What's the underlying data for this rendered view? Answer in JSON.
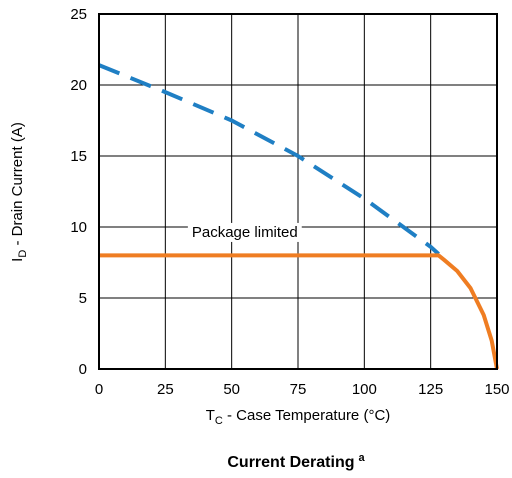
{
  "chart_data": {
    "type": "line",
    "title": "Current Derating",
    "title_superscript": "a",
    "xlabel": {
      "main": "T",
      "sub": "C",
      "rest": " - Case Temperature (°C)"
    },
    "ylabel": {
      "main": "I",
      "sub": "D",
      "rest": " - Drain Current (A)"
    },
    "xlim": [
      0,
      150
    ],
    "ylim": [
      0,
      25
    ],
    "xticks": [
      0,
      25,
      50,
      75,
      100,
      125,
      150
    ],
    "yticks": [
      0,
      5,
      10,
      15,
      20,
      25
    ],
    "grid": true,
    "annotation": {
      "text": "Package limited",
      "x": 35,
      "y": 9.3
    },
    "series": [
      {
        "style": "dashed",
        "color": "#1f7fc4",
        "x": [
          0,
          25,
          50,
          75,
          100,
          125,
          128
        ],
        "y": [
          21.4,
          19.5,
          17.5,
          15.0,
          12.0,
          8.6,
          8.1
        ]
      },
      {
        "style": "solid",
        "color": "#ef7d22",
        "x": [
          0,
          128,
          130,
          135,
          140,
          145,
          148,
          150
        ],
        "y": [
          8.0,
          8.0,
          7.7,
          6.9,
          5.7,
          3.8,
          2.0,
          0
        ]
      }
    ]
  }
}
